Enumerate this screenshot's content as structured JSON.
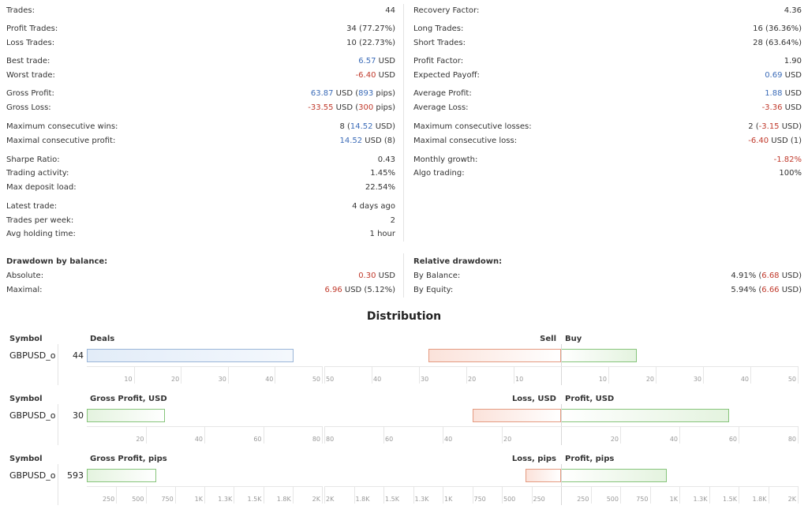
{
  "stats": {
    "left": [
      {
        "label": "Trades:",
        "parts": [
          {
            "t": "44"
          }
        ]
      },
      {
        "label": "Profit Trades:",
        "parts": [
          {
            "t": "34 (77.27%)"
          }
        ]
      },
      {
        "label": "Loss Trades:",
        "parts": [
          {
            "t": "10 (22.73%)"
          }
        ]
      },
      {
        "label": "Best trade:",
        "parts": [
          {
            "t": "6.57",
            "c": "blue"
          },
          {
            "t": " USD"
          }
        ]
      },
      {
        "label": "Worst trade:",
        "parts": [
          {
            "t": "-6.40",
            "c": "red"
          },
          {
            "t": " USD"
          }
        ]
      },
      {
        "label": "Gross Profit:",
        "parts": [
          {
            "t": "63.87",
            "c": "blue"
          },
          {
            "t": " USD ("
          },
          {
            "t": "893",
            "c": "blue"
          },
          {
            "t": " pips)"
          }
        ]
      },
      {
        "label": "Gross Loss:",
        "parts": [
          {
            "t": "-33.55",
            "c": "red"
          },
          {
            "t": " USD ("
          },
          {
            "t": "300",
            "c": "red"
          },
          {
            "t": " pips)"
          }
        ]
      },
      {
        "label": "Maximum consecutive wins:",
        "parts": [
          {
            "t": "8 ("
          },
          {
            "t": "14.52",
            "c": "blue"
          },
          {
            "t": " USD)"
          }
        ]
      },
      {
        "label": "Maximal consecutive profit:",
        "parts": [
          {
            "t": "14.52",
            "c": "blue"
          },
          {
            "t": " USD (8)"
          }
        ]
      },
      {
        "label": "Sharpe Ratio:",
        "parts": [
          {
            "t": "0.43"
          }
        ]
      },
      {
        "label": "Trading activity:",
        "parts": [
          {
            "t": "1.45%"
          }
        ]
      },
      {
        "label": "Max deposit load:",
        "parts": [
          {
            "t": "22.54%"
          }
        ]
      },
      {
        "label": "Latest trade:",
        "parts": [
          {
            "t": "4 days ago"
          }
        ]
      },
      {
        "label": "Trades per week:",
        "parts": [
          {
            "t": "2"
          }
        ]
      },
      {
        "label": "Avg holding time:",
        "parts": [
          {
            "t": "1 hour"
          }
        ]
      }
    ],
    "right": [
      {
        "label": "Recovery Factor:",
        "parts": [
          {
            "t": "4.36"
          }
        ]
      },
      {
        "label": "Long Trades:",
        "parts": [
          {
            "t": "16 (36.36%)"
          }
        ]
      },
      {
        "label": "Short Trades:",
        "parts": [
          {
            "t": "28 (63.64%)"
          }
        ]
      },
      {
        "label": "Profit Factor:",
        "parts": [
          {
            "t": "1.90"
          }
        ]
      },
      {
        "label": "Expected Payoff:",
        "parts": [
          {
            "t": "0.69",
            "c": "blue"
          },
          {
            "t": " USD"
          }
        ]
      },
      {
        "label": "Average Profit:",
        "parts": [
          {
            "t": "1.88",
            "c": "blue"
          },
          {
            "t": " USD"
          }
        ]
      },
      {
        "label": "Average Loss:",
        "parts": [
          {
            "t": "-3.36",
            "c": "red"
          },
          {
            "t": " USD"
          }
        ]
      },
      {
        "label": "Maximum consecutive losses:",
        "parts": [
          {
            "t": "2 ("
          },
          {
            "t": "-3.15",
            "c": "red"
          },
          {
            "t": " USD)"
          }
        ]
      },
      {
        "label": "Maximal consecutive loss:",
        "parts": [
          {
            "t": "-6.40",
            "c": "red"
          },
          {
            "t": " USD (1)"
          }
        ]
      },
      {
        "label": "Monthly growth:",
        "parts": [
          {
            "t": "-1.82%",
            "c": "red"
          }
        ]
      },
      {
        "label": "Algo trading:",
        "parts": [
          {
            "t": "100%"
          }
        ]
      }
    ]
  },
  "drawdown": {
    "left_title": "Drawdown by balance:",
    "left": [
      {
        "label": "Absolute:",
        "parts": [
          {
            "t": "0.30",
            "c": "red"
          },
          {
            "t": " USD"
          }
        ]
      },
      {
        "label": "Maximal:",
        "parts": [
          {
            "t": "6.96",
            "c": "red"
          },
          {
            "t": " USD (5.12%)"
          }
        ]
      }
    ],
    "right_title": "Relative drawdown:",
    "right": [
      {
        "label": "By Balance:",
        "parts": [
          {
            "t": "4.91% ("
          },
          {
            "t": "6.68",
            "c": "red"
          },
          {
            "t": " USD)"
          }
        ]
      },
      {
        "label": "By Equity:",
        "parts": [
          {
            "t": "5.94% ("
          },
          {
            "t": "6.66",
            "c": "red"
          },
          {
            "t": " USD)"
          }
        ]
      }
    ]
  },
  "distribution": {
    "title": "Distribution",
    "sections": [
      {
        "symbol_header": "Symbol",
        "symbol": "GBPUSD_o",
        "value": "44",
        "value_num": 44,
        "left_header": "Deals",
        "left_axis_max": 50,
        "left_ticks": [
          "10",
          "20",
          "30",
          "40",
          "50"
        ],
        "neg_header": "Sell",
        "pos_header": "Buy",
        "neg_value": 28,
        "pos_value": 16,
        "right_axis_max": 50,
        "neg_ticks": [
          "50",
          "40",
          "30",
          "20",
          "10"
        ],
        "pos_ticks": [
          "10",
          "20",
          "30",
          "40",
          "50"
        ]
      },
      {
        "symbol_header": "Symbol",
        "symbol": "GBPUSD_o",
        "value": "30",
        "value_num": 30,
        "left_header": "Gross Profit, USD",
        "left_axis_max": 90,
        "left_ticks": [
          "20",
          "40",
          "60",
          "80"
        ],
        "neg_header": "Loss, USD",
        "pos_header": "Profit, USD",
        "neg_value": 33.55,
        "pos_value": 63.87,
        "right_axis_max": 90,
        "neg_ticks": [
          "80",
          "60",
          "40",
          "20"
        ],
        "pos_ticks": [
          "20",
          "40",
          "60",
          "80"
        ]
      },
      {
        "symbol_header": "Symbol",
        "symbol": "GBPUSD_o",
        "value": "593",
        "value_num": 593,
        "left_header": "Gross Profit, pips",
        "left_axis_max": 2000,
        "left_ticks": [
          "250",
          "500",
          "750",
          "1K",
          "1.3K",
          "1.5K",
          "1.8K",
          "2K"
        ],
        "neg_header": "Loss, pips",
        "pos_header": "Profit, pips",
        "neg_value": 300,
        "pos_value": 893,
        "right_axis_max": 2000,
        "neg_ticks": [
          "2K",
          "1.8K",
          "1.5K",
          "1.3K",
          "1K",
          "750",
          "500",
          "250"
        ],
        "pos_ticks": [
          "250",
          "500",
          "750",
          "1K",
          "1.3K",
          "1.5K",
          "1.8K",
          "2K"
        ]
      }
    ]
  }
}
